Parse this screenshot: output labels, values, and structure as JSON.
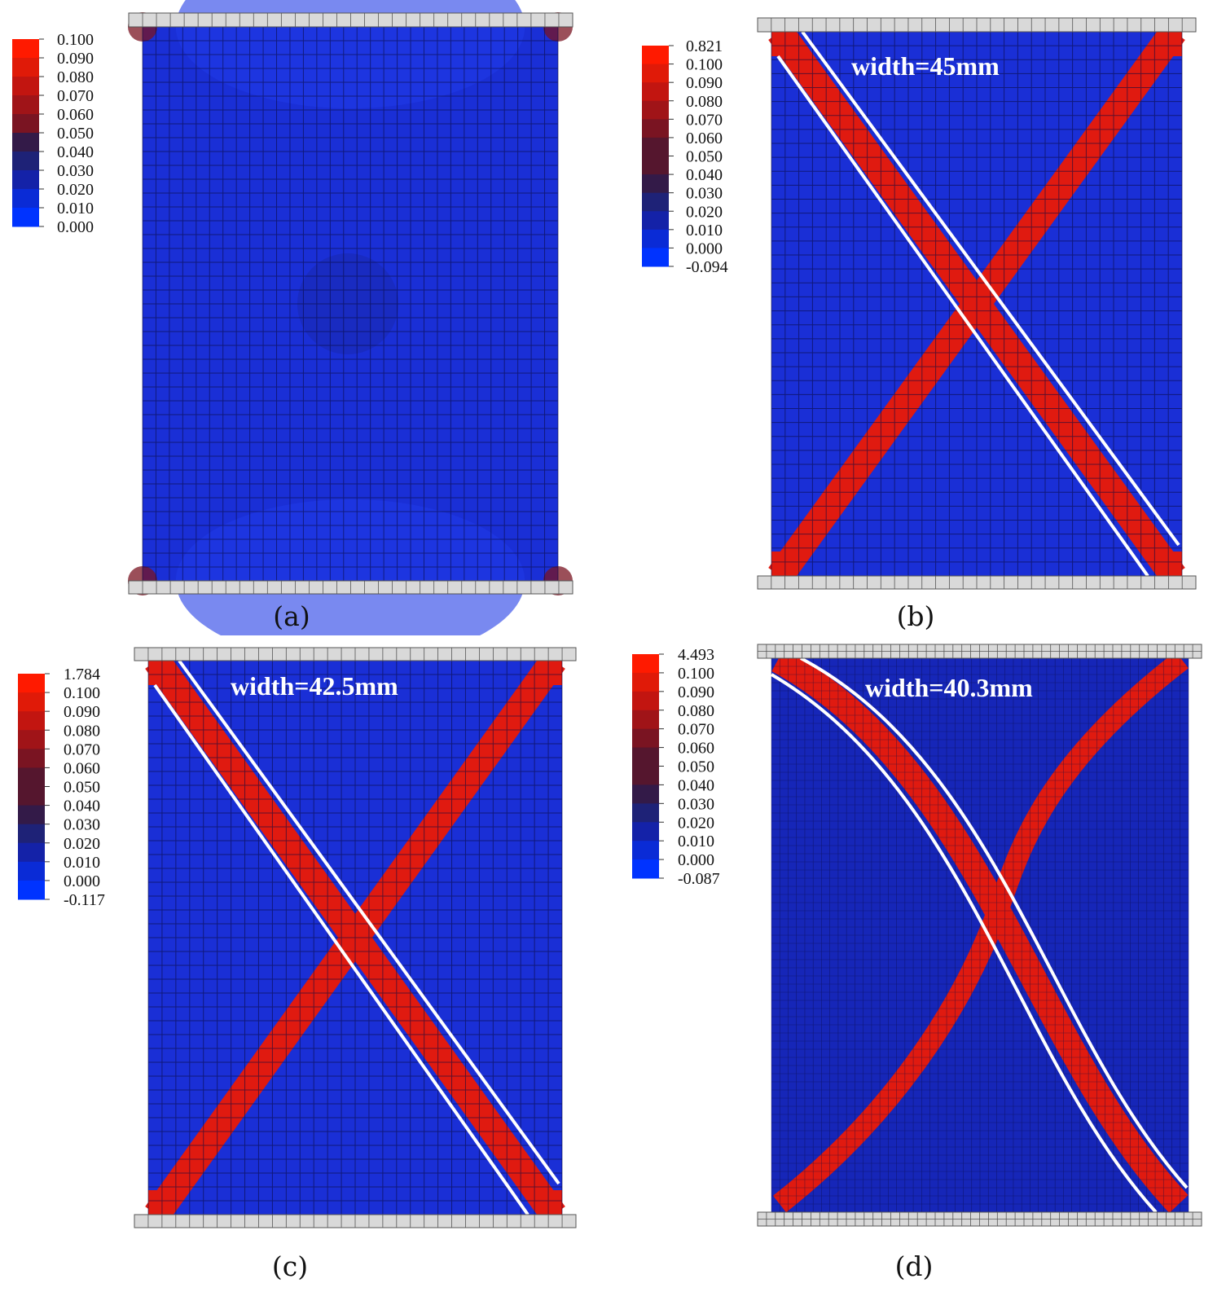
{
  "colors": {
    "field_blue": "#1a2fd6",
    "field_dark": "#1626b8",
    "band_red": "#e01a10",
    "band_edge": "#c41008",
    "plate_fill": "#d9d9d9",
    "plate_stroke": "#555555",
    "grid_line": "#0a0a40",
    "fit_line": "#ffffff",
    "legend_scale": [
      "#ff1a00",
      "#e01a08",
      "#c21510",
      "#a01418",
      "#7a1422",
      "#55162e",
      "#331a48",
      "#1e2277",
      "#1422a8",
      "#0a2bd6",
      "#0033ff"
    ]
  },
  "panels": [
    {
      "id": "a",
      "caption": "(a)",
      "width_label": "",
      "legend": [
        "0.100",
        "0.090",
        "0.080",
        "0.070",
        "0.060",
        "0.050",
        "0.040",
        "0.030",
        "0.020",
        "0.010",
        "0.000"
      ],
      "mesh": "coarse",
      "band": "none"
    },
    {
      "id": "b",
      "caption": "(b)",
      "width_label": "width=45mm",
      "legend": [
        "0.821",
        "0.100",
        "0.090",
        "0.080",
        "0.070",
        "0.060",
        "0.050",
        "0.040",
        "0.030",
        "0.020",
        "0.010",
        "0.000",
        "-0.094"
      ],
      "mesh": "coarse",
      "band": "x-straight"
    },
    {
      "id": "c",
      "caption": "(c)",
      "width_label": "width=42.5mm",
      "legend": [
        "1.784",
        "0.100",
        "0.090",
        "0.080",
        "0.070",
        "0.060",
        "0.050",
        "0.040",
        "0.030",
        "0.020",
        "0.010",
        "0.000",
        "-0.117"
      ],
      "mesh": "coarse",
      "band": "x-straight"
    },
    {
      "id": "d",
      "caption": "(d)",
      "width_label": "width=40.3mm",
      "legend": [
        "4.493",
        "0.100",
        "0.090",
        "0.080",
        "0.070",
        "0.060",
        "0.050",
        "0.040",
        "0.030",
        "0.020",
        "0.010",
        "0.000",
        "-0.087"
      ],
      "mesh": "fine",
      "band": "x-curved"
    }
  ]
}
